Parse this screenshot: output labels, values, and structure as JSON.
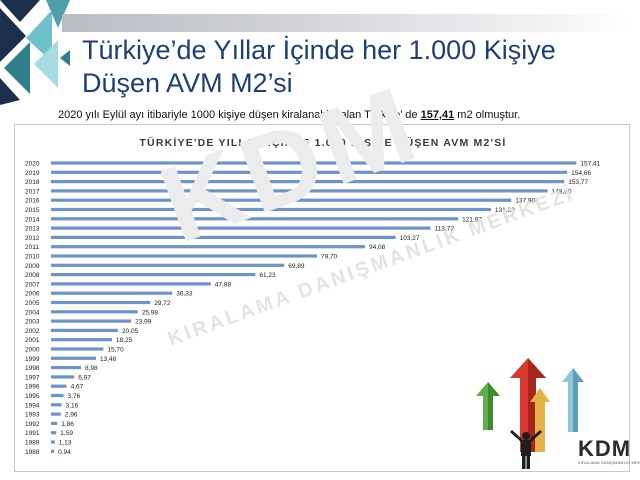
{
  "slide": {
    "title_line1": "Türkiye’de Yıllar İçinde her 1.000 Kişiye",
    "title_line2": "Düşen AVM M2’si",
    "subtitle_before": "2020 yılı Eylül ayı itibariyle 1000 kişiye düşen kiralanabilir alan Türkiye’ de ",
    "subtitle_value": "157,41",
    "subtitle_after": " m2 olmuştur."
  },
  "watermark": {
    "main": "KDM",
    "sub": "KIRALAMA DANIŞMANLIK MERKEZİ"
  },
  "logo": {
    "text": "KDM",
    "sub": "KIRALAMA DANIŞMANLIK MERKEZİ"
  },
  "colors": {
    "title": "#1e3f73",
    "bar": "#6d93c9",
    "chart_title": "#3a3a3a"
  },
  "chart_data": {
    "type": "bar",
    "orientation": "horizontal",
    "title": "TÜRKİYE'DE YILLAR İÇİNDE 1.000 KİŞİYE DÜŞEN AVM M2'Sİ",
    "categories": [
      "2020",
      "2019",
      "2018",
      "2017",
      "2016",
      "2015",
      "2014",
      "2013",
      "2012",
      "2011",
      "2010",
      "2009",
      "2008",
      "2007",
      "2006",
      "2005",
      "2004",
      "2003",
      "2002",
      "2001",
      "2000",
      "1999",
      "1998",
      "1997",
      "1996",
      "1995",
      "1994",
      "1993",
      "1992",
      "1991",
      "1989",
      "1988"
    ],
    "values": [
      157.41,
      154.66,
      153.77,
      148.8,
      137.9,
      131.8,
      121.97,
      113.72,
      103.27,
      94.08,
      79.7,
      69.89,
      61.23,
      47.88,
      36.33,
      29.72,
      25.98,
      23.99,
      20.05,
      18.25,
      15.7,
      13.48,
      8.98,
      6.97,
      4.67,
      3.76,
      3.16,
      2.96,
      1.86,
      1.59,
      1.13,
      0.94
    ],
    "value_labels": [
      "157,41",
      "154,66",
      "153,77",
      "148,80",
      "137,90",
      "131,80",
      "121,97",
      "113,72",
      "103,27",
      "94,08",
      "79,70",
      "69,89",
      "61,23",
      "47,88",
      "36,33",
      "29,72",
      "25,98",
      "23,99",
      "20,05",
      "18,25",
      "15,70",
      "13,48",
      "8,98",
      "6,97",
      "4,67",
      "3,76",
      "3,16",
      "2,96",
      "1,86",
      "1,59",
      "1,13",
      "0,94"
    ],
    "xlim": [
      0,
      160
    ],
    "grid": false,
    "legend": "none"
  }
}
